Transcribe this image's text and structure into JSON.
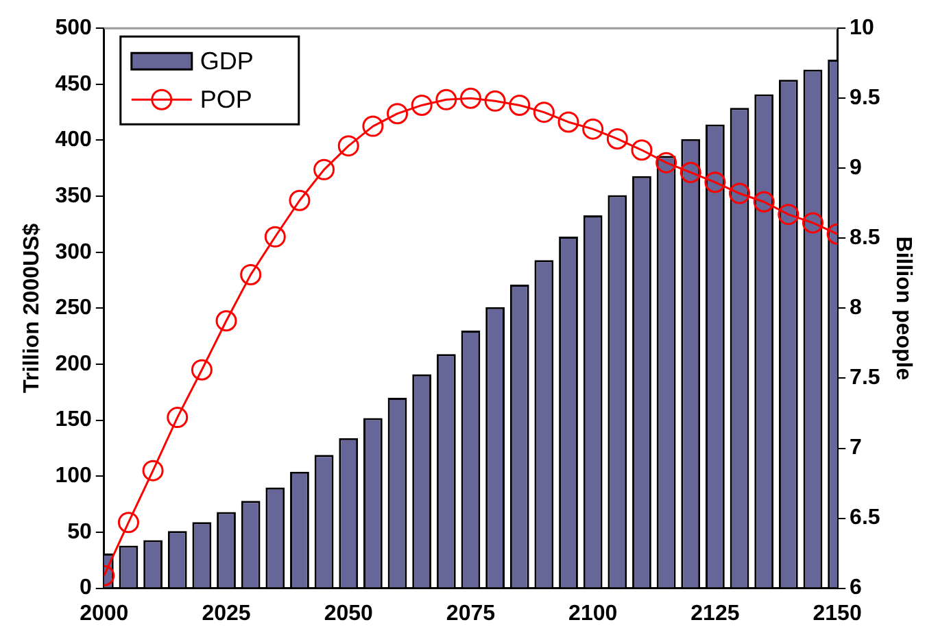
{
  "chart_data": {
    "type": "bar",
    "x": [
      2000,
      2005,
      2010,
      2015,
      2020,
      2025,
      2030,
      2035,
      2040,
      2045,
      2050,
      2055,
      2060,
      2065,
      2070,
      2075,
      2080,
      2085,
      2090,
      2095,
      2100,
      2105,
      2110,
      2115,
      2120,
      2125,
      2130,
      2135,
      2140,
      2145,
      2150
    ],
    "ylabel": "Trillion 2000US$",
    "y2label": "Billion people",
    "xlim": [
      2000,
      2150
    ],
    "xticks": [
      2000,
      2025,
      2050,
      2075,
      2100,
      2125,
      2150
    ],
    "ylim": [
      0,
      500
    ],
    "yticks": [
      0,
      50,
      100,
      150,
      200,
      250,
      300,
      350,
      400,
      450,
      500
    ],
    "y2lim": [
      6,
      10
    ],
    "y2ticks": [
      6,
      6.5,
      7,
      7.5,
      8,
      8.5,
      9,
      9.5,
      10
    ],
    "grid": false,
    "legend": "top left",
    "marker": "circle",
    "series": [
      {
        "name": "GDP",
        "color": "#666699",
        "values": [
          31,
          38,
          43,
          51,
          59,
          68,
          78,
          90,
          104,
          119,
          134,
          152,
          170,
          191,
          209,
          230,
          251,
          271,
          293,
          314,
          333,
          351,
          368,
          386,
          401,
          414,
          429,
          441,
          454,
          463,
          472
        ]
      },
      {
        "name": "POP",
        "type": "line",
        "axis": "y2",
        "color": "#ff0000",
        "values": [
          6.09,
          6.47,
          6.84,
          7.22,
          7.56,
          7.91,
          8.24,
          8.51,
          8.77,
          8.99,
          9.16,
          9.3,
          9.39,
          9.45,
          9.49,
          9.5,
          9.48,
          9.45,
          9.4,
          9.33,
          9.28,
          9.21,
          9.13,
          9.04,
          8.97,
          8.9,
          8.82,
          8.76,
          8.67,
          8.61,
          8.53
        ]
      }
    ]
  }
}
